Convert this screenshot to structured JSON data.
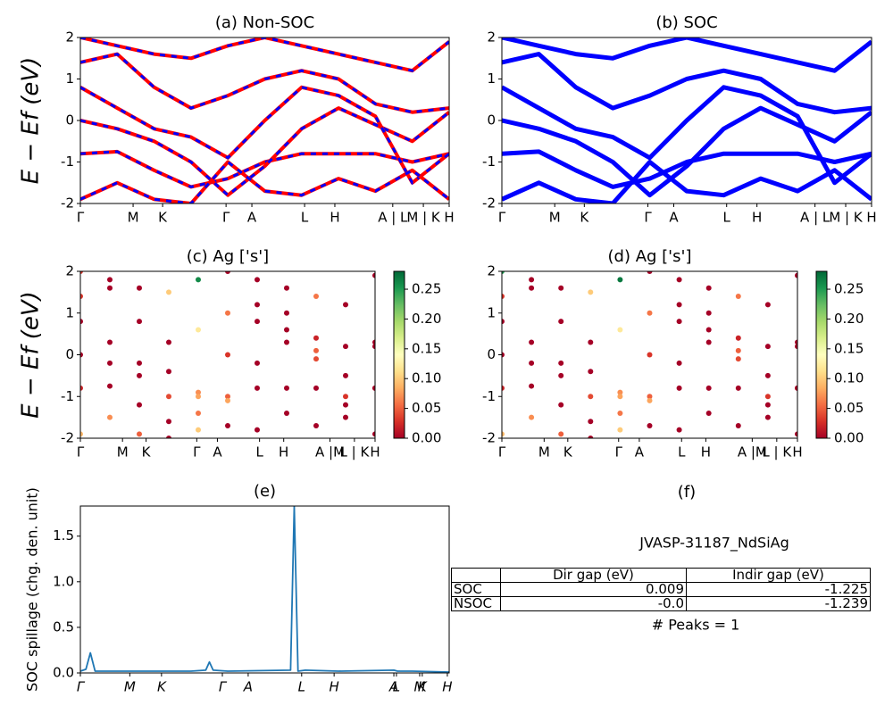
{
  "chart_data": [
    {
      "type": "line",
      "title": "(a) Non-SOC",
      "ylabel": "E − Ef (eV)",
      "dash_color": "#0000ff",
      "xlim": [
        0,
        1
      ],
      "ylim": [
        -2,
        2
      ],
      "yticks": [
        -2,
        -1,
        0,
        1,
        2
      ],
      "xticks": [
        {
          "value": 0,
          "label": "Γ"
        },
        {
          "value": 0.143,
          "label": "M"
        },
        {
          "value": 0.223,
          "label": "K"
        },
        {
          "value": 0.395,
          "label": "Γ"
        },
        {
          "value": 0.465,
          "label": "A"
        },
        {
          "value": 0.608,
          "label": "L"
        },
        {
          "value": 0.69,
          "label": "H"
        },
        {
          "value": 0.847,
          "label": "A | L"
        },
        {
          "value": 0.93,
          "label": "M | K"
        },
        {
          "value": 1,
          "label": "H"
        }
      ],
      "x": [
        0,
        0.1,
        0.2,
        0.3,
        0.4,
        0.5,
        0.6,
        0.7,
        0.8,
        0.9,
        1.0
      ],
      "series": [
        {
          "color": "#ff0000",
          "values": [
            -0.8,
            -0.75,
            -1.2,
            -1.6,
            -1.4,
            -1.0,
            -0.8,
            -0.8,
            -0.8,
            -1.0,
            -0.8
          ]
        },
        {
          "color": "#ff0000",
          "values": [
            0.0,
            -0.2,
            -0.5,
            -1.0,
            -1.8,
            -1.1,
            -0.2,
            0.3,
            -0.1,
            -0.5,
            0.2
          ]
        },
        {
          "color": "#ff0000",
          "values": [
            0.8,
            0.3,
            -0.2,
            -0.4,
            -0.9,
            0.0,
            0.8,
            0.6,
            0.1,
            -1.5,
            -0.8
          ]
        },
        {
          "color": "#ff0000",
          "values": [
            1.4,
            1.6,
            0.8,
            0.3,
            0.6,
            1.0,
            1.2,
            1.0,
            0.4,
            0.2,
            0.3
          ]
        },
        {
          "color": "#ff0000",
          "values": [
            -1.9,
            -1.5,
            -1.9,
            -2.0,
            -1.0,
            -1.7,
            -1.8,
            -1.4,
            -1.7,
            -1.2,
            -1.9
          ]
        },
        {
          "color": "#ff0000",
          "values": [
            2.0,
            1.8,
            1.6,
            1.5,
            1.8,
            2.0,
            1.8,
            1.6,
            1.4,
            1.2,
            1.9
          ]
        }
      ]
    },
    {
      "type": "line",
      "title": "(b) SOC",
      "xlim": [
        0,
        1
      ],
      "ylim": [
        -2,
        2
      ],
      "yticks": [
        -2,
        -1,
        0,
        1,
        2
      ],
      "xticks": [
        {
          "value": 0,
          "label": "Γ"
        },
        {
          "value": 0.143,
          "label": "M"
        },
        {
          "value": 0.223,
          "label": "K"
        },
        {
          "value": 0.395,
          "label": "Γ"
        },
        {
          "value": 0.465,
          "label": "A"
        },
        {
          "value": 0.608,
          "label": "L"
        },
        {
          "value": 0.69,
          "label": "H"
        },
        {
          "value": 0.847,
          "label": "A | L"
        },
        {
          "value": 0.93,
          "label": "M | K"
        },
        {
          "value": 1,
          "label": "H"
        }
      ],
      "x": [
        0,
        0.1,
        0.2,
        0.3,
        0.4,
        0.5,
        0.6,
        0.7,
        0.8,
        0.9,
        1.0
      ],
      "series": [
        {
          "color": "#0000ff",
          "values": [
            -0.8,
            -0.75,
            -1.2,
            -1.6,
            -1.4,
            -1.0,
            -0.8,
            -0.8,
            -0.8,
            -1.0,
            -0.8
          ]
        },
        {
          "color": "#0000ff",
          "values": [
            0.0,
            -0.2,
            -0.5,
            -1.0,
            -1.8,
            -1.1,
            -0.2,
            0.3,
            -0.1,
            -0.5,
            0.2
          ]
        },
        {
          "color": "#0000ff",
          "values": [
            0.8,
            0.3,
            -0.2,
            -0.4,
            -0.9,
            0.0,
            0.8,
            0.6,
            0.1,
            -1.5,
            -0.8
          ]
        },
        {
          "color": "#0000ff",
          "values": [
            1.4,
            1.6,
            0.8,
            0.3,
            0.6,
            1.0,
            1.2,
            1.0,
            0.4,
            0.2,
            0.3
          ]
        },
        {
          "color": "#0000ff",
          "values": [
            -1.9,
            -1.5,
            -1.9,
            -2.0,
            -1.0,
            -1.7,
            -1.8,
            -1.4,
            -1.7,
            -1.2,
            -1.9
          ]
        },
        {
          "color": "#0000ff",
          "values": [
            2.0,
            1.8,
            1.6,
            1.5,
            1.8,
            2.0,
            1.8,
            1.6,
            1.4,
            1.2,
            1.9
          ]
        }
      ]
    },
    {
      "type": "scatter",
      "title": "(c)  Ag ['s']",
      "ylabel": "E − Ef (eV)",
      "colormap": [
        "#a50026",
        "#d73027",
        "#f46d43",
        "#fdae61",
        "#fee08b",
        "#ffffbf",
        "#d9ef8b",
        "#a6d96a",
        "#66bd63",
        "#1a9850",
        "#006837"
      ],
      "clim": [
        0,
        0.28
      ],
      "cticks": [
        {
          "value": 0,
          "label": "0.00"
        },
        0.05,
        {
          "value": 0.1,
          "label": "0.10"
        },
        0.15,
        {
          "value": 0.2,
          "label": "0.20"
        },
        0.25
      ],
      "xlim": [
        0,
        1
      ],
      "ylim": [
        -2,
        2
      ],
      "yticks": [
        -2,
        -1,
        0,
        1,
        2
      ],
      "xticks": [
        {
          "value": 0,
          "label": "Γ"
        },
        {
          "value": 0.143,
          "label": "M"
        },
        {
          "value": 0.223,
          "label": "K"
        },
        {
          "value": 0.395,
          "label": "Γ"
        },
        {
          "value": 0.465,
          "label": "A"
        },
        {
          "value": 0.608,
          "label": "L"
        },
        {
          "value": 0.69,
          "label": "H"
        },
        {
          "value": 0.847,
          "label": "A |M"
        },
        {
          "value": 0.93,
          "label": "L | K"
        },
        {
          "value": 1,
          "label": "H"
        }
      ],
      "x": [
        0,
        0.1,
        0.2,
        0.3,
        0.4,
        0.5,
        0.6,
        0.7,
        0.8,
        0.9,
        1.0
      ],
      "series": [
        {
          "values": [
            -0.8,
            -0.75,
            -1.2,
            -1.6,
            -1.4,
            -1.0,
            -0.8,
            -0.8,
            -0.8,
            -1.0,
            -0.8
          ],
          "weights": [
            0.02,
            0,
            0,
            0,
            0.06,
            0.05,
            0,
            0,
            0,
            0.03,
            0
          ]
        },
        {
          "values": [
            0.0,
            -0.2,
            -0.5,
            -1.0,
            -1.8,
            -1.1,
            -0.2,
            0.3,
            -0.1,
            -0.5,
            0.2
          ],
          "weights": [
            0,
            0,
            0,
            0.04,
            0.1,
            0.08,
            0,
            0,
            0.04,
            0,
            0
          ]
        },
        {
          "values": [
            0.8,
            0.3,
            -0.2,
            -0.4,
            -0.9,
            0.0,
            0.8,
            0.6,
            0.1,
            -1.5,
            -0.8
          ],
          "weights": [
            0,
            0,
            0,
            0,
            0.07,
            0.03,
            0,
            0,
            0.05,
            0,
            0
          ]
        },
        {
          "values": [
            1.4,
            1.6,
            0.8,
            0.3,
            0.6,
            1.0,
            1.2,
            1.0,
            0.4,
            0.2,
            0.3
          ],
          "weights": [
            0.03,
            0,
            0,
            0,
            0.12,
            0.06,
            0,
            0,
            0.02,
            0,
            0
          ]
        },
        {
          "values": [
            -1.9,
            -1.5,
            -1.9,
            -2.0,
            -1.0,
            -1.7,
            -1.8,
            -1.4,
            -1.7,
            -1.2,
            -1.9
          ],
          "weights": [
            0.09,
            0.07,
            0.05,
            0,
            0.08,
            0,
            0,
            0,
            0,
            0,
            0
          ]
        },
        {
          "values": [
            2.0,
            1.8,
            1.6,
            1.5,
            1.8,
            2.0,
            1.8,
            1.6,
            1.4,
            1.2,
            1.9
          ],
          "weights": [
            0.03,
            0,
            0,
            0.1,
            0.26,
            0,
            0,
            0,
            0.06,
            0,
            0
          ]
        }
      ]
    },
    {
      "type": "scatter",
      "title": "(d) Ag ['s']",
      "colormap": [
        "#a50026",
        "#d73027",
        "#f46d43",
        "#fdae61",
        "#fee08b",
        "#ffffbf",
        "#d9ef8b",
        "#a6d96a",
        "#66bd63",
        "#1a9850",
        "#006837"
      ],
      "clim": [
        0,
        0.28
      ],
      "cticks": [
        {
          "value": 0,
          "label": "0.00"
        },
        0.05,
        {
          "value": 0.1,
          "label": "0.10"
        },
        0.15,
        {
          "value": 0.2,
          "label": "0.20"
        },
        0.25
      ],
      "xlim": [
        0,
        1
      ],
      "ylim": [
        -2,
        2
      ],
      "yticks": [
        -2,
        -1,
        0,
        1,
        2
      ],
      "xticks": [
        {
          "value": 0,
          "label": "Γ"
        },
        {
          "value": 0.143,
          "label": "M"
        },
        {
          "value": 0.223,
          "label": "K"
        },
        {
          "value": 0.395,
          "label": "Γ"
        },
        {
          "value": 0.465,
          "label": "A"
        },
        {
          "value": 0.608,
          "label": "L"
        },
        {
          "value": 0.69,
          "label": "H"
        },
        {
          "value": 0.847,
          "label": "A |M"
        },
        {
          "value": 0.93,
          "label": "L | K"
        },
        {
          "value": 1,
          "label": "H"
        }
      ],
      "x": [
        0,
        0.1,
        0.2,
        0.3,
        0.4,
        0.5,
        0.6,
        0.7,
        0.8,
        0.9,
        1.0
      ],
      "series": [
        {
          "values": [
            -0.8,
            -0.75,
            -1.2,
            -1.6,
            -1.4,
            -1.0,
            -0.8,
            -0.8,
            -0.8,
            -1.0,
            -0.8
          ],
          "weights": [
            0.02,
            0,
            0,
            0,
            0.06,
            0.05,
            0,
            0,
            0,
            0.03,
            0
          ]
        },
        {
          "values": [
            0.0,
            -0.2,
            -0.5,
            -1.0,
            -1.8,
            -1.1,
            -0.2,
            0.3,
            -0.1,
            -0.5,
            0.2
          ],
          "weights": [
            0,
            0,
            0,
            0.04,
            0.1,
            0.08,
            0,
            0,
            0.04,
            0,
            0
          ]
        },
        {
          "values": [
            0.8,
            0.3,
            -0.2,
            -0.4,
            -0.9,
            0.0,
            0.8,
            0.6,
            0.1,
            -1.5,
            -0.8
          ],
          "weights": [
            0,
            0,
            0,
            0,
            0.07,
            0.03,
            0,
            0,
            0.05,
            0,
            0
          ]
        },
        {
          "values": [
            1.4,
            1.6,
            0.8,
            0.3,
            0.6,
            1.0,
            1.2,
            1.0,
            0.4,
            0.2,
            0.3
          ],
          "weights": [
            0.03,
            0,
            0,
            0,
            0.12,
            0.06,
            0,
            0,
            0.02,
            0,
            0
          ]
        },
        {
          "values": [
            -1.9,
            -1.5,
            -1.9,
            -2.0,
            -1.0,
            -1.7,
            -1.8,
            -1.4,
            -1.7,
            -1.2,
            -1.9
          ],
          "weights": [
            0.09,
            0.07,
            0.05,
            0,
            0.08,
            0,
            0,
            0,
            0,
            0,
            0
          ]
        },
        {
          "values": [
            2.0,
            1.8,
            1.6,
            1.5,
            1.8,
            2.0,
            1.8,
            1.6,
            1.4,
            1.2,
            1.9
          ],
          "weights": [
            0.25,
            0,
            0,
            0.1,
            0.27,
            0,
            0,
            0,
            0.06,
            0,
            0
          ]
        }
      ]
    },
    {
      "type": "line",
      "title": "(e)",
      "ylabel": "SOC spillage (chg. den. unit)",
      "xlim": [
        0,
        1
      ],
      "ylim": [
        0,
        1.83
      ],
      "yticks": [
        {
          "value": 0,
          "label": "0.0"
        },
        0.5,
        {
          "value": 1,
          "label": "1.0"
        },
        1.5
      ],
      "xticks": [
        {
          "value": 0,
          "label": "Γ"
        },
        {
          "value": 0.134,
          "label": "M"
        },
        {
          "value": 0.22,
          "label": "K"
        },
        {
          "value": 0.385,
          "label": "Γ"
        },
        {
          "value": 0.455,
          "label": "A"
        },
        {
          "value": 0.6,
          "label": "L"
        },
        {
          "value": 0.688,
          "label": "H"
        },
        {
          "value": 0.85,
          "label": "A"
        },
        {
          "value": 0.857,
          "label": "L"
        },
        {
          "value": 0.92,
          "label": "M"
        },
        {
          "value": 0.927,
          "label": "K"
        },
        {
          "value": 0.995,
          "label": "H"
        }
      ],
      "x": [
        0,
        0.015,
        0.027,
        0.04,
        0.1,
        0.3,
        0.34,
        0.35,
        0.36,
        0.4,
        0.57,
        0.58,
        0.59,
        0.61,
        0.7,
        0.85,
        0.86,
        0.9,
        1.0
      ],
      "series": [
        {
          "color": "#1f77b4",
          "values": [
            0.02,
            0.04,
            0.22,
            0.02,
            0.02,
            0.02,
            0.03,
            0.12,
            0.03,
            0.02,
            0.03,
            1.83,
            0.02,
            0.03,
            0.02,
            0.03,
            0.02,
            0.02,
            0.01
          ]
        }
      ]
    }
  ],
  "panel_f": {
    "title": "(f)",
    "subtitle": "JVASP-31187_NdSiAg",
    "columns": [
      "Dir gap (eV)",
      "Indir gap (eV)"
    ],
    "rows": [
      [
        "SOC",
        "0.009",
        "-1.225"
      ],
      [
        "NSOC",
        "-0.0",
        "-1.239"
      ]
    ],
    "note": "# Peaks = 1"
  }
}
